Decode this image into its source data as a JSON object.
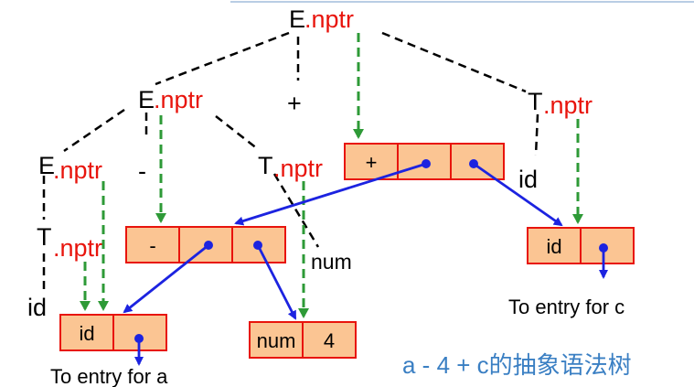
{
  "symbols": {
    "e_root": "E",
    "e_mid": "E",
    "e_low": "E",
    "t_low": "T",
    "t_mid": "T",
    "t_right": "T",
    "plus_op": "+",
    "minus_op": "-",
    "id_left": "id",
    "num_leaf": "num",
    "id_right": "id"
  },
  "nptr_suffix": ".nptr",
  "nodes": {
    "plus_node": [
      "+",
      "",
      ""
    ],
    "minus_node": [
      "-",
      "",
      ""
    ],
    "id_a_node": [
      "id",
      ""
    ],
    "num_node": [
      "num",
      "4"
    ],
    "id_c_node": [
      "id",
      ""
    ]
  },
  "notes": {
    "entry_a": "To entry for a",
    "entry_c": "To entry for c"
  },
  "caption": "a - 4 + c的抽象语法树",
  "colors": {
    "node_fill": "#fbc593",
    "node_border": "#e8140c",
    "nptr_text": "#e8140c",
    "pointer_arrow": "#1c23e0",
    "attribute_link": "#2e9a37",
    "caption_text": "#3a7fc3"
  }
}
